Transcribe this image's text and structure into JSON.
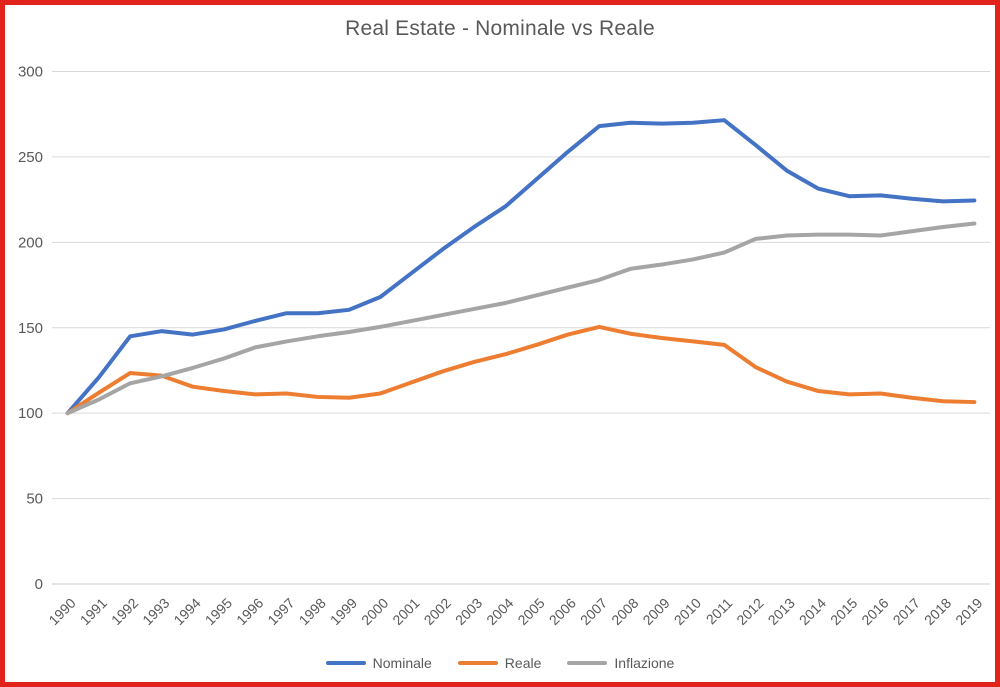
{
  "frame": {
    "border_color": "#e2231b",
    "background": "#ffffff"
  },
  "chart_data": {
    "type": "line",
    "title": "Real Estate - Nominale vs Reale",
    "title_color": "#595959",
    "x": [
      1990,
      1991,
      1992,
      1993,
      1994,
      1995,
      1996,
      1997,
      1998,
      1999,
      2000,
      2001,
      2002,
      2003,
      2004,
      2005,
      2006,
      2007,
      2008,
      2009,
      2010,
      2011,
      2012,
      2013,
      2014,
      2015,
      2016,
      2017,
      2018,
      2019
    ],
    "series": [
      {
        "name": "Nominale",
        "color": "#4472C4",
        "values": [
          100,
          121,
          145,
          148,
          146,
          149,
          154,
          158.5,
          158.5,
          160.5,
          168,
          182,
          196,
          209,
          221,
          237,
          253,
          268,
          270,
          269.5,
          270,
          271.5,
          257,
          242,
          231.5,
          227,
          227.5,
          225.5,
          224,
          224.5
        ]
      },
      {
        "name": "Reale",
        "color": "#ED7D31",
        "values": [
          100,
          112,
          123.5,
          122,
          115.5,
          113,
          111,
          111.5,
          109.5,
          109,
          111.5,
          118,
          124.5,
          130,
          134.5,
          140,
          146,
          150.5,
          146.5,
          144,
          142,
          140,
          127,
          118.5,
          113,
          111,
          111.5,
          109,
          107,
          106.5
        ]
      },
      {
        "name": "Inflazione",
        "color": "#A5A5A5",
        "values": [
          100,
          108,
          117.5,
          121.5,
          126.5,
          132,
          138.5,
          142,
          145,
          147.5,
          150.5,
          154,
          157.5,
          161,
          164.5,
          169,
          173.5,
          178,
          184.5,
          187,
          190,
          194,
          202,
          204,
          204.5,
          204.5,
          204,
          206.5,
          209,
          211
        ]
      }
    ],
    "ylim": [
      0,
      300
    ],
    "yticks": [
      0,
      50,
      100,
      150,
      200,
      250,
      300
    ],
    "grid": true,
    "gridline_color": "#D9D9D9",
    "axis_line_color": "#C9C9C9",
    "tick_label_color": "#595959",
    "x_tick_rotation": -45,
    "legend_position": "bottom",
    "line_width": 4
  }
}
